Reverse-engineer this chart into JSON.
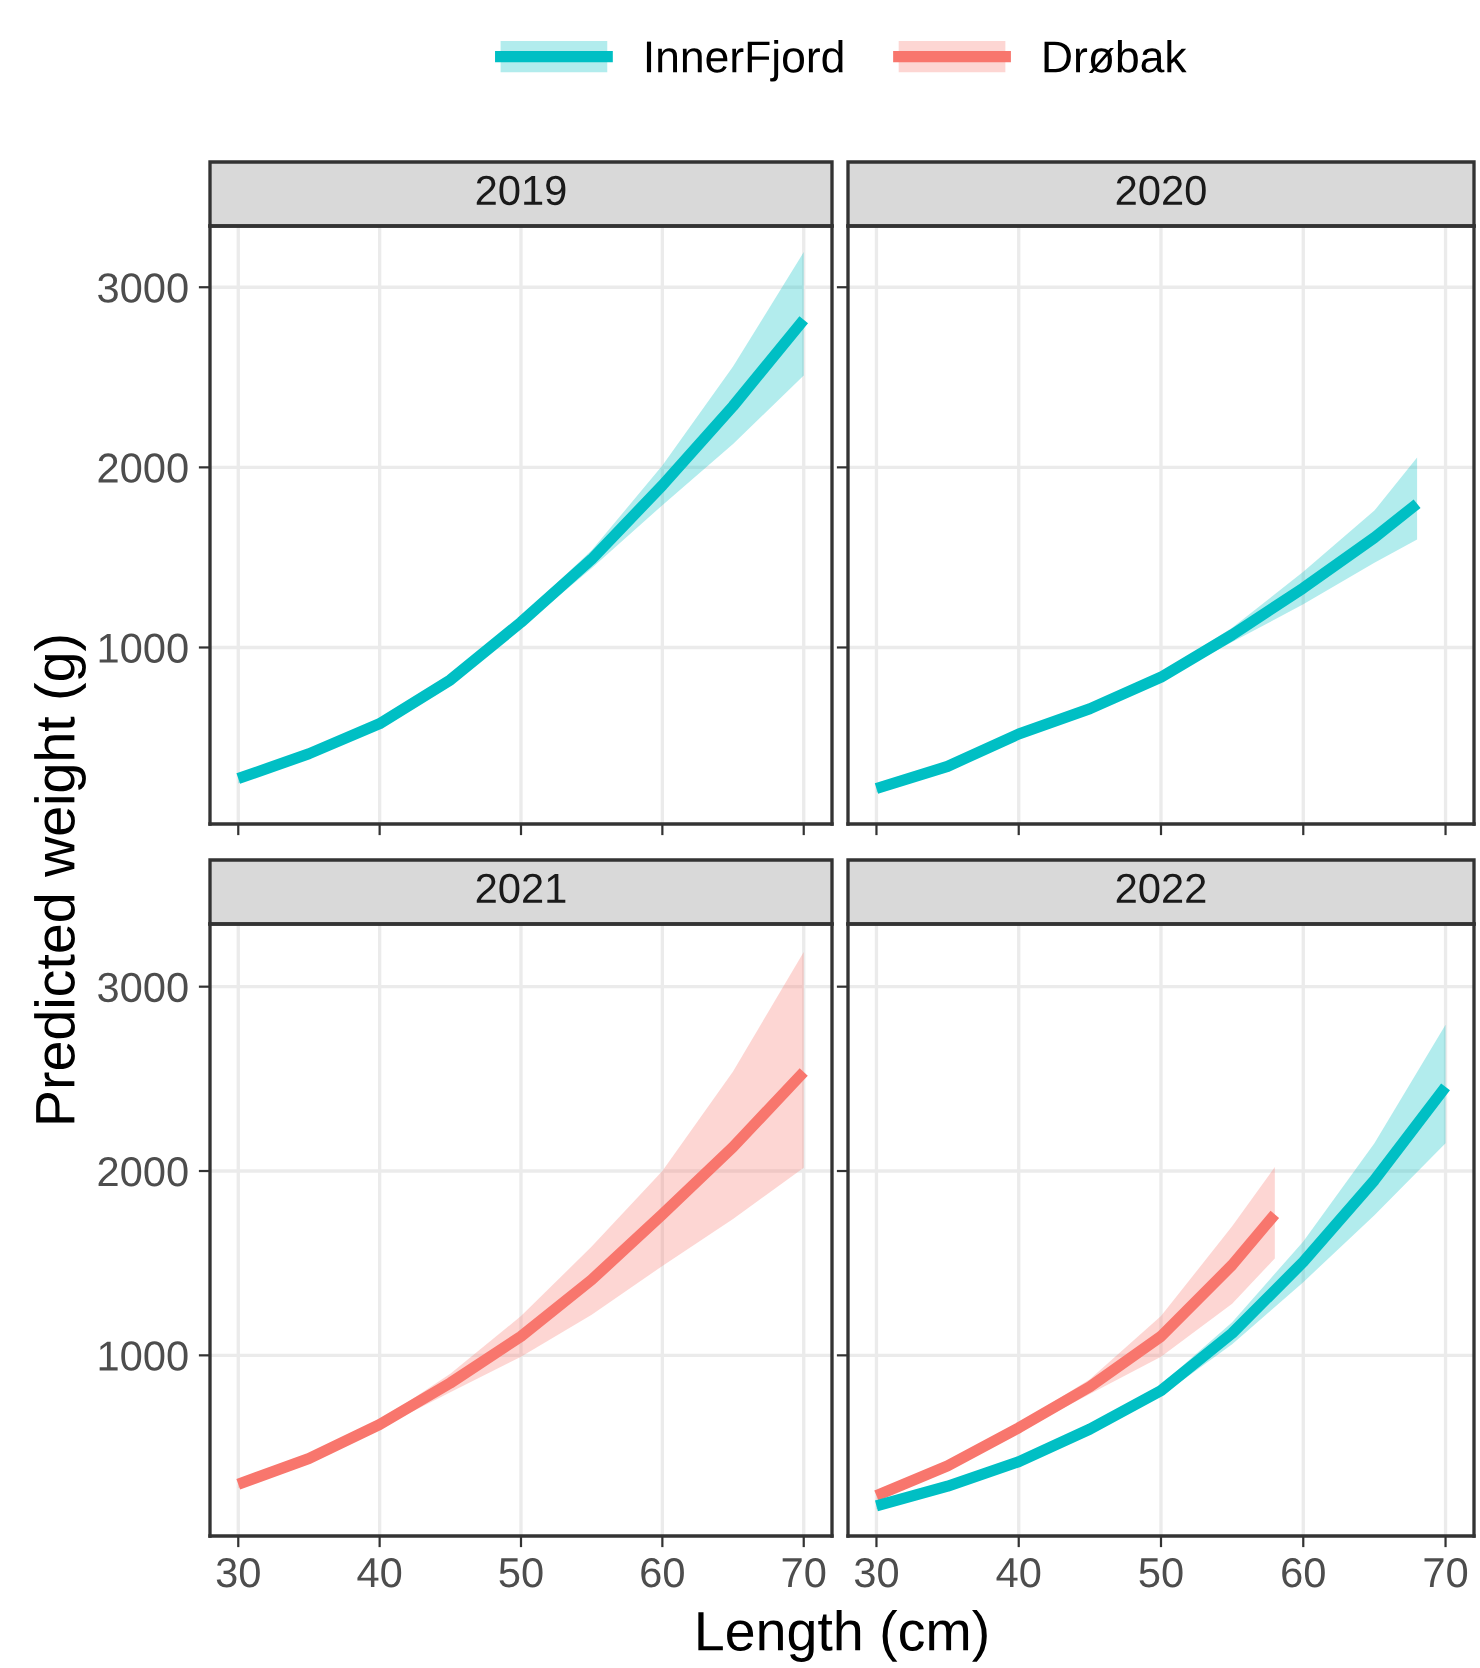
{
  "chart_data": [
    {
      "type": "line",
      "title": "2019",
      "ylabel": "Predicted weight (g)",
      "legend": "top",
      "tick_labels": "y",
      "grid": true,
      "xlim": [
        28,
        72
      ],
      "ylim": [
        20,
        3340
      ],
      "xticks": [
        30,
        40,
        50,
        60,
        70
      ],
      "yticks": [
        1000,
        2000,
        3000
      ],
      "series": [
        {
          "name": "InnerFjord",
          "color": "#00bfc4",
          "x": [
            30,
            35,
            40,
            45,
            50,
            55,
            60,
            65,
            70
          ],
          "values": [
            272,
            410,
            577,
            820,
            1140,
            1490,
            1900,
            2340,
            2820
          ],
          "lower": [
            245,
            385,
            555,
            800,
            1110,
            1440,
            1790,
            2130,
            2510
          ],
          "upper": [
            300,
            435,
            600,
            840,
            1170,
            1540,
            2010,
            2560,
            3195
          ]
        }
      ]
    },
    {
      "type": "line",
      "title": "2020",
      "tick_labels": false,
      "grid": true,
      "xlim": [
        28,
        72
      ],
      "ylim": [
        20,
        3340
      ],
      "xticks": [
        30,
        40,
        50,
        60,
        70
      ],
      "yticks": [
        1000,
        2000,
        3000
      ],
      "series": [
        {
          "name": "InnerFjord",
          "color": "#00bfc4",
          "x": [
            30,
            35,
            40,
            45,
            50,
            55,
            60,
            65,
            68
          ],
          "values": [
            217,
            340,
            520,
            660,
            835,
            1070,
            1330,
            1610,
            1798
          ],
          "lower": [
            195,
            320,
            500,
            645,
            815,
            1030,
            1240,
            1470,
            1600
          ],
          "upper": [
            240,
            360,
            540,
            680,
            860,
            1110,
            1420,
            1760,
            2055
          ]
        }
      ]
    },
    {
      "type": "line",
      "title": "2021",
      "xlabel": "Length (cm)",
      "grid": true,
      "xlim": [
        28,
        72
      ],
      "ylim": [
        20,
        3340
      ],
      "xticks": [
        30,
        40,
        50,
        60,
        70
      ],
      "yticks": [
        1000,
        2000,
        3000
      ],
      "series": [
        {
          "name": "Drøbak",
          "color": "#f8766d",
          "x": [
            30,
            35,
            40,
            45,
            50,
            55,
            60,
            65,
            70
          ],
          "values": [
            301,
            440,
            625,
            850,
            1103,
            1410,
            1765,
            2130,
            2537
          ],
          "lower": [
            280,
            425,
            605,
            800,
            993,
            1220,
            1485,
            1740,
            2018
          ],
          "upper": [
            320,
            455,
            645,
            900,
            1213,
            1590,
            2000,
            2540,
            3188
          ]
        }
      ]
    },
    {
      "type": "line",
      "title": "2022",
      "tick_labels": "x",
      "grid": true,
      "xlim": [
        28,
        72
      ],
      "ylim": [
        20,
        3340
      ],
      "xticks": [
        30,
        40,
        50,
        60,
        70
      ],
      "yticks": [
        1000,
        2000,
        3000
      ],
      "series": [
        {
          "name": "Drøbak",
          "color": "#f8766d",
          "x": [
            30,
            35,
            40,
            45,
            50,
            55,
            58
          ],
          "values": [
            239,
            400,
            607,
            830,
            1103,
            1490,
            1765
          ],
          "lower": [
            215,
            380,
            585,
            790,
            993,
            1280,
            1526
          ],
          "upper": [
            265,
            420,
            630,
            870,
            1213,
            1700,
            2022
          ]
        },
        {
          "name": "InnerFjord",
          "color": "#00bfc4",
          "x": [
            30,
            35,
            40,
            45,
            50,
            55,
            60,
            65,
            70
          ],
          "values": [
            184,
            290,
            423,
            600,
            809,
            1120,
            1507,
            1950,
            2456
          ],
          "lower": [
            165,
            272,
            405,
            575,
            780,
            1060,
            1397,
            1760,
            2151
          ],
          "upper": [
            205,
            310,
            440,
            625,
            840,
            1180,
            1618,
            2150,
            2794
          ]
        }
      ]
    }
  ]
}
